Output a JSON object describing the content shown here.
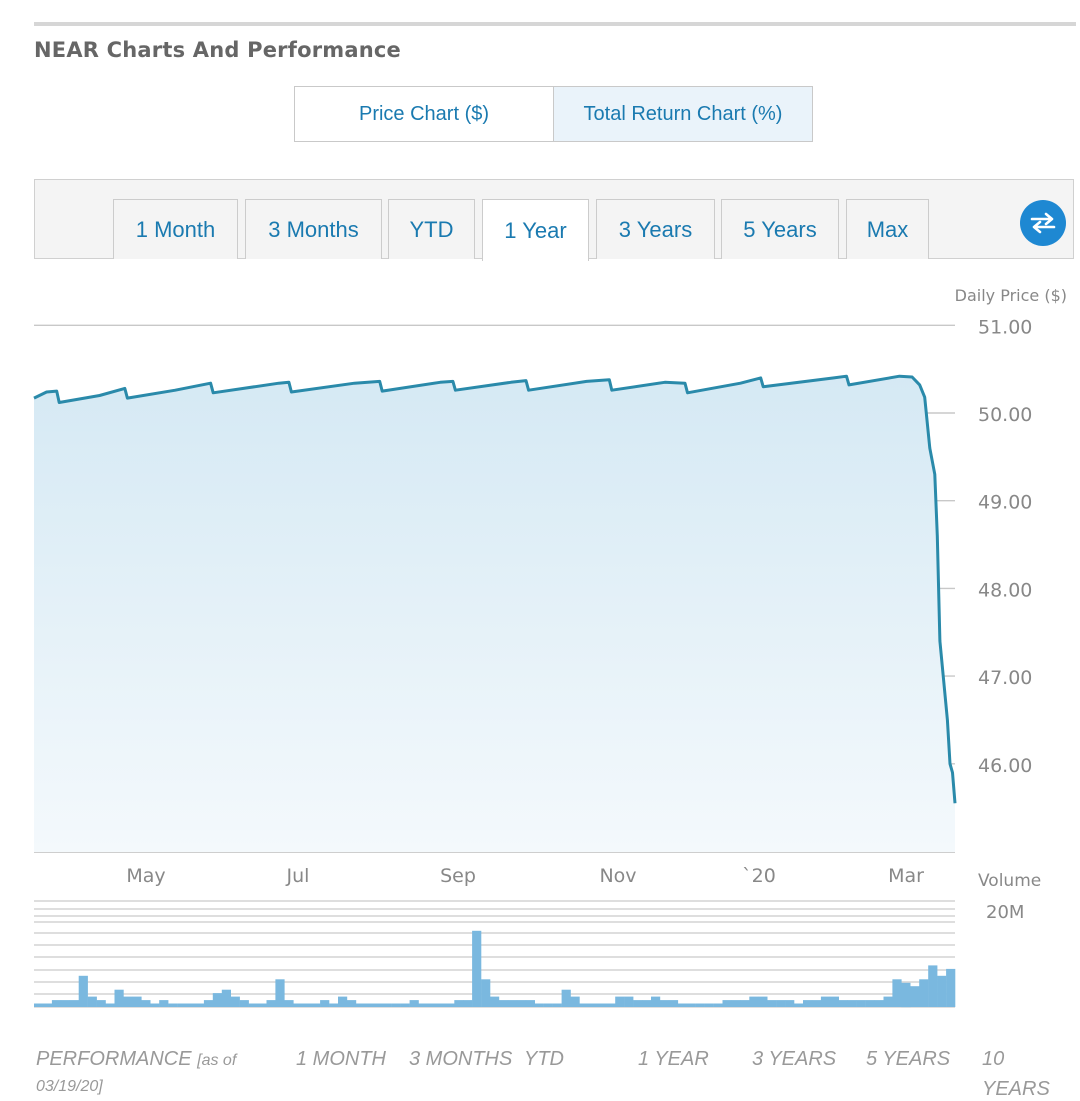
{
  "header": {
    "title": "NEAR Charts And Performance"
  },
  "chart_type_toggle": {
    "price": "Price Chart ($)",
    "total_return": "Total Return Chart (%)"
  },
  "ranges": [
    {
      "label": "1 Month",
      "active": false
    },
    {
      "label": "3 Months",
      "active": false
    },
    {
      "label": "YTD",
      "active": false
    },
    {
      "label": "1 Year",
      "active": true
    },
    {
      "label": "3 Years",
      "active": false
    },
    {
      "label": "5 Years",
      "active": false
    },
    {
      "label": "Max",
      "active": false
    }
  ],
  "swap_icon": "swap-arrows-icon",
  "colors": {
    "accent": "#1a7ab0",
    "line": "#2a8aaa",
    "fill_top": "#d8ebf5",
    "volume_bar": "#7ab8df",
    "swap_bg": "#1e88d2"
  },
  "chart_data": {
    "type": "area",
    "ylabel": "Daily Price ($)",
    "ylim": [
      45.4,
      51.1
    ],
    "y_ticks": [
      "51.00",
      "50.00",
      "49.00",
      "48.00",
      "47.00",
      "46.00"
    ],
    "x_ticks": [
      "May",
      "Jul",
      "Sep",
      "Nov",
      "`20",
      "Mar"
    ],
    "grid": true,
    "series": [
      {
        "x": [
          "2019-03-20",
          "2019-03-25",
          "2019-03-29",
          "2019-03-30",
          "2019-04-15",
          "2019-04-25",
          "2019-04-26",
          "2019-05-15",
          "2019-05-29",
          "2019-05-30",
          "2019-06-25",
          "2019-06-29",
          "2019-06-30",
          "2019-07-25",
          "2019-08-04",
          "2019-08-05",
          "2019-08-28",
          "2019-09-02",
          "2019-09-03",
          "2019-09-25",
          "2019-10-01",
          "2019-10-02",
          "2019-10-25",
          "2019-11-03",
          "2019-11-04",
          "2019-11-25",
          "2019-12-03",
          "2019-12-04",
          "2019-12-25",
          "2020-01-02",
          "2020-01-03",
          "2020-01-31",
          "2020-02-05",
          "2020-02-06",
          "2020-02-26",
          "2020-03-02",
          "2020-03-05",
          "2020-03-07",
          "2020-03-09",
          "2020-03-11",
          "2020-03-12",
          "2020-03-13",
          "2020-03-16",
          "2020-03-17",
          "2020-03-18",
          "2020-03-19"
        ],
        "values": [
          50.17,
          50.24,
          50.25,
          50.12,
          50.2,
          50.28,
          50.17,
          50.26,
          50.34,
          50.23,
          50.34,
          50.35,
          50.24,
          50.34,
          50.36,
          50.25,
          50.35,
          50.36,
          50.26,
          50.35,
          50.37,
          50.26,
          50.36,
          50.38,
          50.26,
          50.35,
          50.34,
          50.23,
          50.34,
          50.4,
          50.3,
          50.4,
          50.42,
          50.32,
          50.42,
          50.41,
          50.32,
          50.18,
          49.6,
          49.3,
          48.6,
          47.4,
          46.5,
          46.0,
          45.9,
          45.55
        ]
      }
    ],
    "volume": {
      "label": "Volume",
      "tick": "20M",
      "max": 28,
      "values": [
        1,
        1,
        2,
        2,
        2,
        9,
        3,
        2,
        1,
        5,
        3,
        3,
        2,
        1,
        2,
        1,
        1,
        1,
        1,
        2,
        4,
        5,
        3,
        2,
        1,
        1,
        2,
        8,
        2,
        1,
        1,
        1,
        2,
        1,
        3,
        2,
        1,
        1,
        1,
        1,
        1,
        1,
        2,
        1,
        1,
        1,
        1,
        2,
        2,
        22,
        8,
        3,
        2,
        2,
        2,
        2,
        1,
        1,
        1,
        5,
        3,
        1,
        1,
        1,
        1,
        3,
        3,
        2,
        2,
        3,
        2,
        2,
        1,
        1,
        1,
        1,
        1,
        2,
        2,
        2,
        3,
        3,
        2,
        2,
        2,
        1,
        2,
        2,
        3,
        3,
        2,
        2,
        2,
        2,
        2,
        3,
        8,
        7,
        6,
        8,
        12,
        9,
        11
      ]
    }
  },
  "performance": {
    "label": "PERFORMANCE",
    "as_of": "[as of",
    "as_of_date": "03/19/20]",
    "columns": [
      "1 MONTH",
      "3 MONTHS",
      "YTD",
      "1 YEAR",
      "3 YEARS",
      "5 YEARS",
      "10",
      "YEARS"
    ]
  }
}
